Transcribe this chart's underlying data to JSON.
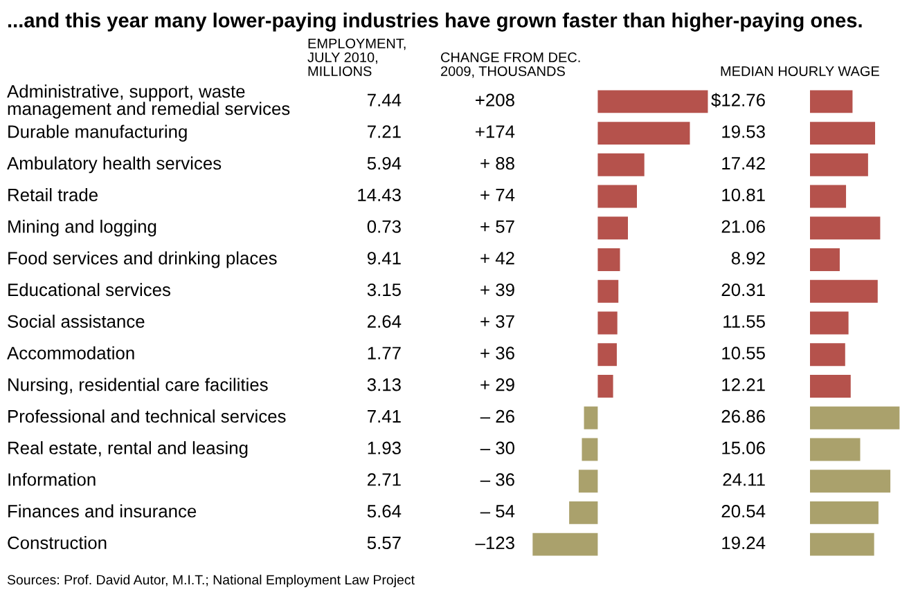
{
  "chart_data": [
    {
      "type": "other",
      "title": "...and this year many lower-paying industries have grown faster than higher-paying ones.",
      "xlabel": "EMPLOYMENT, JULY 2010, MILLIONS",
      "categories": [
        "Administrative, support, waste management and remedial services",
        "Durable manufacturing",
        "Ambulatory health services",
        "Retail trade",
        "Mining and logging",
        "Food services and drinking places",
        "Educational services",
        "Social assistance",
        "Accommodation",
        "Nursing, residential care facilities",
        "Professional and technical services",
        "Real estate, rental and leasing",
        "Information",
        "Finances and insurance",
        "Construction"
      ],
      "value_labels": [
        "7.44",
        "7.21",
        "5.94",
        "14.43",
        "0.73",
        "9.41",
        "3.15",
        "2.64",
        "1.77",
        "3.13",
        "7.41",
        "1.93",
        "2.71",
        "5.64",
        "5.57"
      ],
      "annotations": [
        "Sources: Prof. David Autor, M.I.T.; National Employment Law Project"
      ]
    },
    {
      "type": "bar",
      "orientation": "horizontal",
      "xlabel": "CHANGE FROM DEC. 2009, THOUSANDS",
      "categories": [
        null,
        null,
        null,
        null,
        null,
        null,
        null,
        null,
        null,
        null,
        null,
        null,
        null,
        null,
        null
      ],
      "values": [
        208,
        174,
        88,
        74,
        57,
        42,
        39,
        37,
        36,
        29,
        -26,
        -30,
        -36,
        -54,
        -123
      ],
      "value_labels": [
        "+208",
        "+174",
        "+ 88",
        "+ 74",
        "+ 57",
        "+ 42",
        "+ 39",
        "+ 37",
        "+ 36",
        "+ 29",
        "– 26",
        "– 30",
        "– 36",
        "– 54",
        "–123"
      ],
      "colors": [
        "#b5524c",
        "#b5524c",
        "#b5524c",
        "#b5524c",
        "#b5524c",
        "#b5524c",
        "#b5524c",
        "#b5524c",
        "#b5524c",
        "#b5524c",
        "#aaa16c",
        "#aaa16c",
        "#aaa16c",
        "#aaa16c",
        "#aaa16c"
      ],
      "xlim": [
        -130,
        210
      ]
    },
    {
      "type": "bar",
      "orientation": "horizontal",
      "xlabel": "MEDIAN HOURLY WAGE",
      "categories": [
        null,
        null,
        null,
        null,
        null,
        null,
        null,
        null,
        null,
        null,
        null,
        null,
        null,
        null,
        null
      ],
      "values": [
        12.76,
        19.53,
        17.42,
        10.81,
        21.06,
        8.92,
        20.31,
        11.55,
        10.55,
        12.21,
        26.86,
        15.06,
        24.11,
        20.54,
        19.24
      ],
      "value_labels": [
        "$12.76",
        "19.53",
        "17.42",
        "10.81",
        "21.06",
        "8.92",
        "20.31",
        "11.55",
        "10.55",
        "12.21",
        "26.86",
        "15.06",
        "24.11",
        "20.54",
        "19.24"
      ],
      "colors": [
        "#b5524c",
        "#b5524c",
        "#b5524c",
        "#b5524c",
        "#b5524c",
        "#b5524c",
        "#b5524c",
        "#b5524c",
        "#b5524c",
        "#b5524c",
        "#aaa16c",
        "#aaa16c",
        "#aaa16c",
        "#aaa16c",
        "#aaa16c"
      ],
      "xlim": [
        0,
        27
      ]
    }
  ]
}
